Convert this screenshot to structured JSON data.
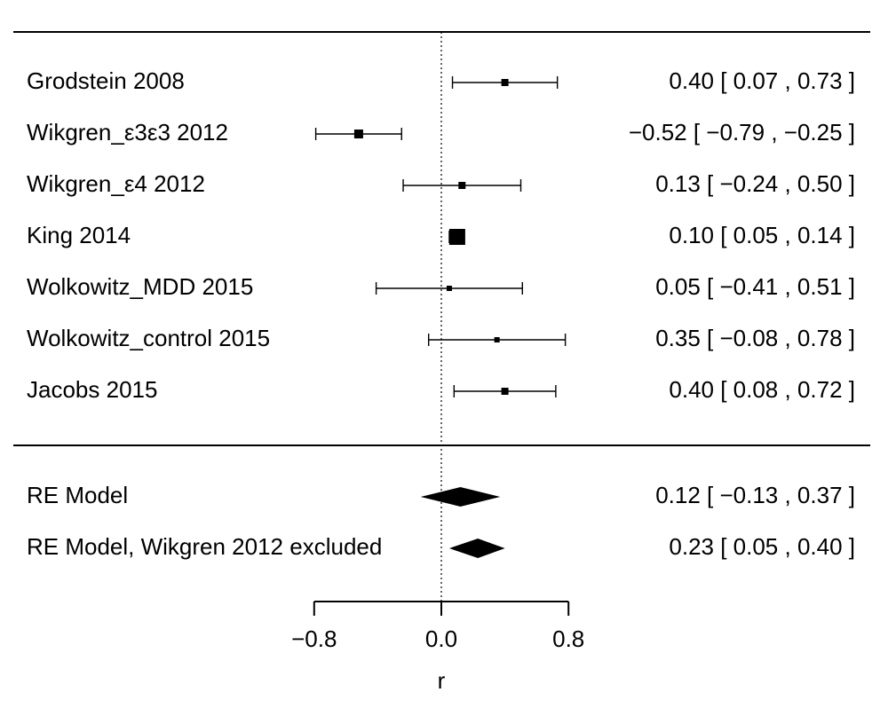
{
  "chart_data": {
    "type": "forest",
    "xlabel": "r",
    "xticks": [
      -0.8,
      0.0,
      0.8
    ],
    "xtick_labels": [
      "−0.8",
      "0.0",
      "0.8"
    ],
    "xlim": [
      -0.8,
      0.8
    ],
    "reference_line": 0,
    "studies": [
      {
        "label": "Grodstein 2008",
        "estimate": 0.4,
        "lower": 0.07,
        "upper": 0.73,
        "text": "0.40 [  0.07 ,  0.73 ]",
        "weight": 2
      },
      {
        "label": "Wikgren_ε3ε3 2012",
        "estimate": -0.52,
        "lower": -0.79,
        "upper": -0.25,
        "text": "−0.52 [ −0.79 , −0.25 ]",
        "weight": 3
      },
      {
        "label": "Wikgren_ε4 2012",
        "estimate": 0.13,
        "lower": -0.24,
        "upper": 0.5,
        "text": "0.13 [ −0.24 ,  0.50 ]",
        "weight": 2
      },
      {
        "label": "King 2014",
        "estimate": 0.1,
        "lower": 0.05,
        "upper": 0.14,
        "text": "0.10 [  0.05 ,  0.14 ]",
        "weight": 7
      },
      {
        "label": "Wolkowitz_MDD 2015",
        "estimate": 0.05,
        "lower": -0.41,
        "upper": 0.51,
        "text": "0.05 [ −0.41 ,  0.51 ]",
        "weight": 1
      },
      {
        "label": "Wolkowitz_control 2015",
        "estimate": 0.35,
        "lower": -0.08,
        "upper": 0.78,
        "text": "0.35 [ −0.08 ,  0.78 ]",
        "weight": 1
      },
      {
        "label": "Jacobs 2015",
        "estimate": 0.4,
        "lower": 0.08,
        "upper": 0.72,
        "text": "0.40 [  0.08 ,  0.72 ]",
        "weight": 2
      }
    ],
    "pooled": [
      {
        "label": "RE Model",
        "estimate": 0.12,
        "lower": -0.13,
        "upper": 0.37,
        "text": "0.12 [ −0.13 ,  0.37 ]"
      },
      {
        "label": "RE Model, Wikgren 2012 excluded",
        "estimate": 0.23,
        "lower": 0.05,
        "upper": 0.4,
        "text": "0.23 [ 0.05 , 0.40 ]"
      }
    ]
  }
}
